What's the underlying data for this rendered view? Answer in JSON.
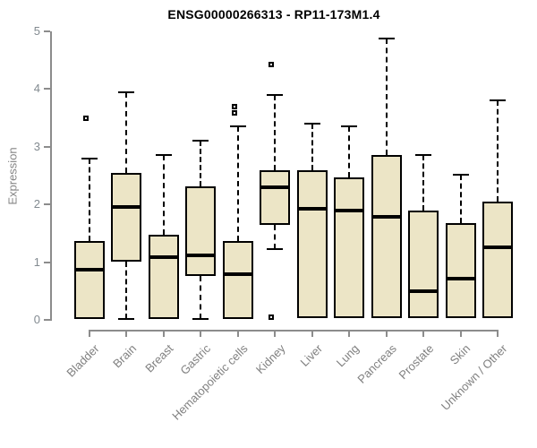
{
  "page": {
    "background_color": "#ffffff"
  },
  "chart_data": {
    "type": "boxplot",
    "title": "ENSG00000266313 - RP11-173M1.4",
    "ylabel": "Expression",
    "xlabel": "",
    "ylim": [
      0,
      5
    ],
    "yticks": [
      0,
      1,
      2,
      3,
      4,
      5
    ],
    "grid": false,
    "legend": false,
    "colors": {
      "box_fill": "#ece5c6",
      "box_border": "#000000",
      "whisker": "#000000",
      "axis": "#8c8c8c",
      "tick_label": "#808080",
      "title": "#000000"
    },
    "categories": [
      "Bladder",
      "Brain",
      "Breast",
      "Gastric",
      "Hematopoietic cells",
      "Kidney",
      "Liver",
      "Lung",
      "Pancreas",
      "Prostate",
      "Skin",
      "Unknown / Other"
    ],
    "series": [
      {
        "category": "Bladder",
        "whisker_low": 0.02,
        "q1": 0.02,
        "median": 0.87,
        "q3": 1.37,
        "whisker_high": 2.8,
        "outliers": [
          3.5
        ]
      },
      {
        "category": "Brain",
        "whisker_low": 0.02,
        "q1": 1.01,
        "median": 1.95,
        "q3": 2.55,
        "whisker_high": 3.95,
        "outliers": []
      },
      {
        "category": "Breast",
        "whisker_low": 0.02,
        "q1": 0.02,
        "median": 1.09,
        "q3": 1.47,
        "whisker_high": 2.85,
        "outliers": []
      },
      {
        "category": "Gastric",
        "whisker_low": 0.02,
        "q1": 0.76,
        "median": 1.12,
        "q3": 2.31,
        "whisker_high": 3.1,
        "outliers": []
      },
      {
        "category": "Hematopoietic cells",
        "whisker_low": 0.02,
        "q1": 0.02,
        "median": 0.79,
        "q3": 1.37,
        "whisker_high": 3.35,
        "outliers": [
          3.59,
          3.7
        ]
      },
      {
        "category": "Kidney",
        "whisker_low": 1.22,
        "q1": 1.65,
        "median": 2.3,
        "q3": 2.6,
        "whisker_high": 3.9,
        "outliers": [
          4.42,
          0.05
        ]
      },
      {
        "category": "Liver",
        "whisker_low": 0.03,
        "q1": 0.03,
        "median": 1.92,
        "q3": 2.6,
        "whisker_high": 3.4,
        "outliers": []
      },
      {
        "category": "Lung",
        "whisker_low": 0.03,
        "q1": 0.03,
        "median": 1.9,
        "q3": 2.47,
        "whisker_high": 3.35,
        "outliers": []
      },
      {
        "category": "Pancreas",
        "whisker_low": 0.03,
        "q1": 0.03,
        "median": 1.78,
        "q3": 2.85,
        "whisker_high": 4.87,
        "outliers": []
      },
      {
        "category": "Prostate",
        "whisker_low": 0.03,
        "q1": 0.03,
        "median": 0.5,
        "q3": 1.89,
        "whisker_high": 2.85,
        "outliers": []
      },
      {
        "category": "Skin",
        "whisker_low": 0.03,
        "q1": 0.03,
        "median": 0.72,
        "q3": 1.68,
        "whisker_high": 2.52,
        "outliers": []
      },
      {
        "category": "Unknown / Other",
        "whisker_low": 0.03,
        "q1": 0.03,
        "median": 1.26,
        "q3": 2.05,
        "whisker_high": 3.8,
        "outliers": []
      }
    ]
  }
}
